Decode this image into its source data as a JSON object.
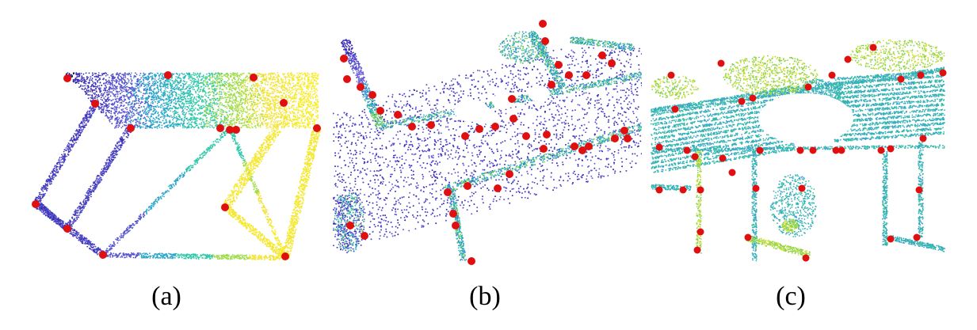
{
  "figure": {
    "panels": [
      {
        "id": "a",
        "caption": "(a)",
        "point_palette": [
          "#3b2fb0",
          "#5a55d0",
          "#2aa7c9",
          "#30c8a8",
          "#9fdc4a",
          "#f2e43a",
          "#f7ec2a"
        ],
        "keypoint_color": "#e01010"
      },
      {
        "id": "b",
        "caption": "(b)",
        "point_palette": [
          "#3a2fb5",
          "#5048c8",
          "#6a5fd8",
          "#2f8fd0",
          "#2bb3b0",
          "#6cd06a"
        ],
        "keypoint_color": "#e01010"
      },
      {
        "id": "c",
        "caption": "(c)",
        "point_palette": [
          "#2fb9b0",
          "#35c0a0",
          "#3ea0d0",
          "#7fcf5a",
          "#a7d93a",
          "#d6e13a"
        ],
        "keypoint_color": "#e01010"
      }
    ]
  }
}
